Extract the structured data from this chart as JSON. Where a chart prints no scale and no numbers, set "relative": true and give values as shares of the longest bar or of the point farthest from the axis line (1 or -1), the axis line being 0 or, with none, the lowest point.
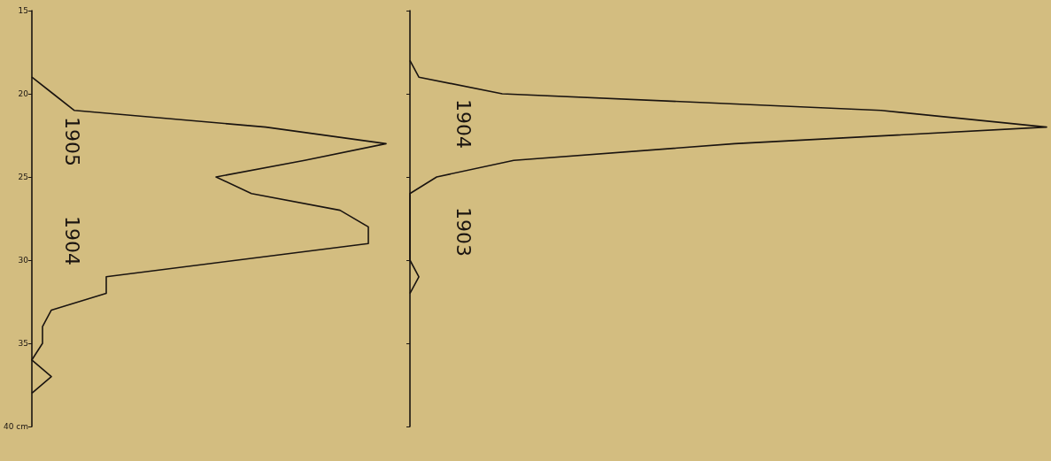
{
  "chart_data": [
    {
      "type": "line",
      "orientation": "horizontal",
      "categories": [
        "15",
        null,
        null,
        null,
        null,
        "20",
        null,
        null,
        null,
        null,
        "25",
        null,
        null,
        null,
        null,
        "30",
        null,
        null,
        null,
        null,
        "35",
        null,
        null,
        null,
        null,
        "40 cm"
      ],
      "values": [
        null,
        null,
        null,
        null,
        0,
        0.06,
        0.12,
        0.66,
        1,
        0.77,
        0.52,
        0.62,
        0.87,
        0.95,
        0.95,
        0.58,
        0.21,
        0.21,
        0.055,
        0.03,
        0.03,
        0,
        0.055,
        0,
        null,
        null
      ],
      "color": "#1a1410",
      "relative": true,
      "annotations": [
        "1905",
        "1904"
      ],
      "marker": "none",
      "line_style": "solid",
      "grid": false
    },
    {
      "type": "line",
      "orientation": "horizontal",
      "categories": [
        null,
        null,
        null,
        null,
        null,
        null,
        null,
        null,
        null,
        null,
        null,
        null,
        null,
        null,
        null,
        null,
        null,
        null,
        null,
        null,
        null,
        null,
        null,
        null,
        null,
        null
      ],
      "values": [
        null,
        null,
        null,
        0,
        0.014,
        0.145,
        0.74,
        1,
        0.51,
        0.163,
        0.042,
        0,
        0,
        0,
        0,
        0,
        0.014,
        0,
        null,
        null,
        null,
        null,
        null,
        null,
        null,
        null
      ],
      "color": "#1a1410",
      "relative": true,
      "annotations": [
        "1904",
        "1903"
      ],
      "marker": "none",
      "line_style": "solid",
      "grid": false
    }
  ]
}
